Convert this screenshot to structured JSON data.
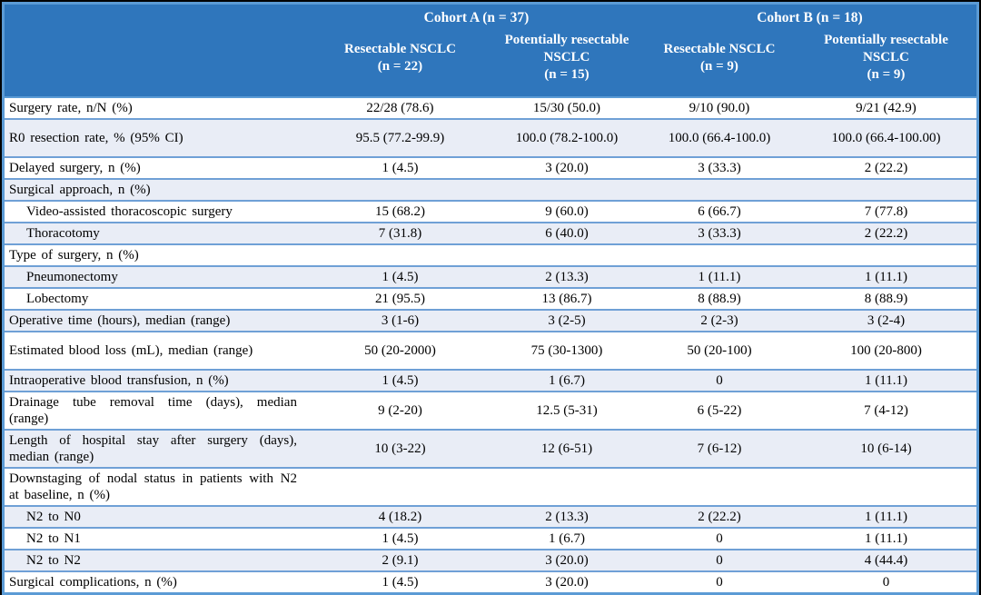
{
  "colors": {
    "page_bg": "#000000",
    "header_bg": "#2F76BC",
    "header_text": "#FFFFFF",
    "frame_border": "#5B9BD5",
    "row_separator": "#6FA0D6",
    "row_bg_white": "#FFFFFF",
    "row_bg_shaded": "#E9EDF6",
    "body_text": "#000000"
  },
  "header": {
    "cohort_a": "Cohort A (n = 37)",
    "cohort_b": "Cohort B (n = 18)",
    "columns": [
      {
        "name": "Resectable NSCLC",
        "n": "(n = 22)"
      },
      {
        "name": "Potentially resectable NSCLC",
        "n": "(n = 15)"
      },
      {
        "name": "Resectable NSCLC",
        "n": "(n = 9)"
      },
      {
        "name": "Potentially resectable NSCLC",
        "n": "(n = 9)"
      }
    ]
  },
  "rows": [
    {
      "label": "Surgery rate, n/N (%)",
      "values": [
        "22/28 (78.6)",
        "15/30 (50.0)",
        "9/10 (90.0)",
        "9/21 (42.9)"
      ],
      "indent": false,
      "tall": false
    },
    {
      "label": "R0 resection rate, % (95% CI)",
      "values": [
        "95.5 (77.2-99.9)",
        "100.0 (78.2-100.0)",
        "100.0 (66.4-100.0)",
        "100.0 (66.4-100.00)"
      ],
      "indent": false,
      "tall": true
    },
    {
      "label": "Delayed surgery, n (%)",
      "values": [
        "1 (4.5)",
        "3 (20.0)",
        "3 (33.3)",
        "2 (22.2)"
      ],
      "indent": false,
      "tall": false
    },
    {
      "label": "Surgical approach, n (%)",
      "values": [
        "",
        "",
        "",
        ""
      ],
      "indent": false,
      "tall": false
    },
    {
      "label": "Video-assisted thoracoscopic surgery",
      "values": [
        "15 (68.2)",
        "9 (60.0)",
        "6 (66.7)",
        "7 (77.8)"
      ],
      "indent": true,
      "tall": false
    },
    {
      "label": "Thoracotomy",
      "values": [
        "7 (31.8)",
        "6 (40.0)",
        "3 (33.3)",
        "2 (22.2)"
      ],
      "indent": true,
      "tall": false
    },
    {
      "label": "Type of surgery, n (%)",
      "values": [
        "",
        "",
        "",
        ""
      ],
      "indent": false,
      "tall": false
    },
    {
      "label": "Pneumonectomy",
      "values": [
        "1 (4.5)",
        "2 (13.3)",
        "1 (11.1)",
        "1 (11.1)"
      ],
      "indent": true,
      "tall": false
    },
    {
      "label": "Lobectomy",
      "values": [
        "21 (95.5)",
        "13 (86.7)",
        "8 (88.9)",
        "8 (88.9)"
      ],
      "indent": true,
      "tall": false
    },
    {
      "label": "Operative time (hours), median (range)",
      "values": [
        "3 (1-6)",
        "3 (2-5)",
        "2 (2-3)",
        "3 (2-4)"
      ],
      "indent": false,
      "tall": false
    },
    {
      "label": "Estimated blood loss (mL), median (range)",
      "values": [
        "50 (20-2000)",
        "75 (30-1300)",
        "50 (20-100)",
        "100 (20-800)"
      ],
      "indent": false,
      "tall": true
    },
    {
      "label": "Intraoperative blood transfusion, n (%)",
      "values": [
        "1 (4.5)",
        "1 (6.7)",
        "0",
        "1 (11.1)"
      ],
      "indent": false,
      "tall": false
    },
    {
      "label": "Drainage tube removal time (days), median (range)",
      "values": [
        "9 (2-20)",
        "12.5 (5-31)",
        "6 (5-22)",
        "7 (4-12)"
      ],
      "indent": false,
      "tall": false
    },
    {
      "label": "Length of hospital stay after surgery (days), median (range)",
      "values": [
        "10 (3-22)",
        "12 (6-51)",
        "7 (6-12)",
        "10 (6-14)"
      ],
      "indent": false,
      "tall": false
    },
    {
      "label": "Downstaging of nodal status in patients with N2 at baseline, n (%)",
      "values": [
        "",
        "",
        "",
        ""
      ],
      "indent": false,
      "tall": false
    },
    {
      "label": "N2 to N0",
      "values": [
        "4 (18.2)",
        "2 (13.3)",
        "2 (22.2)",
        "1 (11.1)"
      ],
      "indent": true,
      "tall": false
    },
    {
      "label": "N2 to N1",
      "values": [
        "1 (4.5)",
        "1 (6.7)",
        "0",
        "1 (11.1)"
      ],
      "indent": true,
      "tall": false
    },
    {
      "label": "N2 to N2",
      "values": [
        "2 (9.1)",
        "3 (20.0)",
        "0",
        "4 (44.4)"
      ],
      "indent": true,
      "tall": false
    },
    {
      "label": "Surgical complications, n (%)",
      "values": [
        "1 (4.5)",
        "3 (20.0)",
        "0",
        "0"
      ],
      "indent": false,
      "tall": false
    }
  ]
}
